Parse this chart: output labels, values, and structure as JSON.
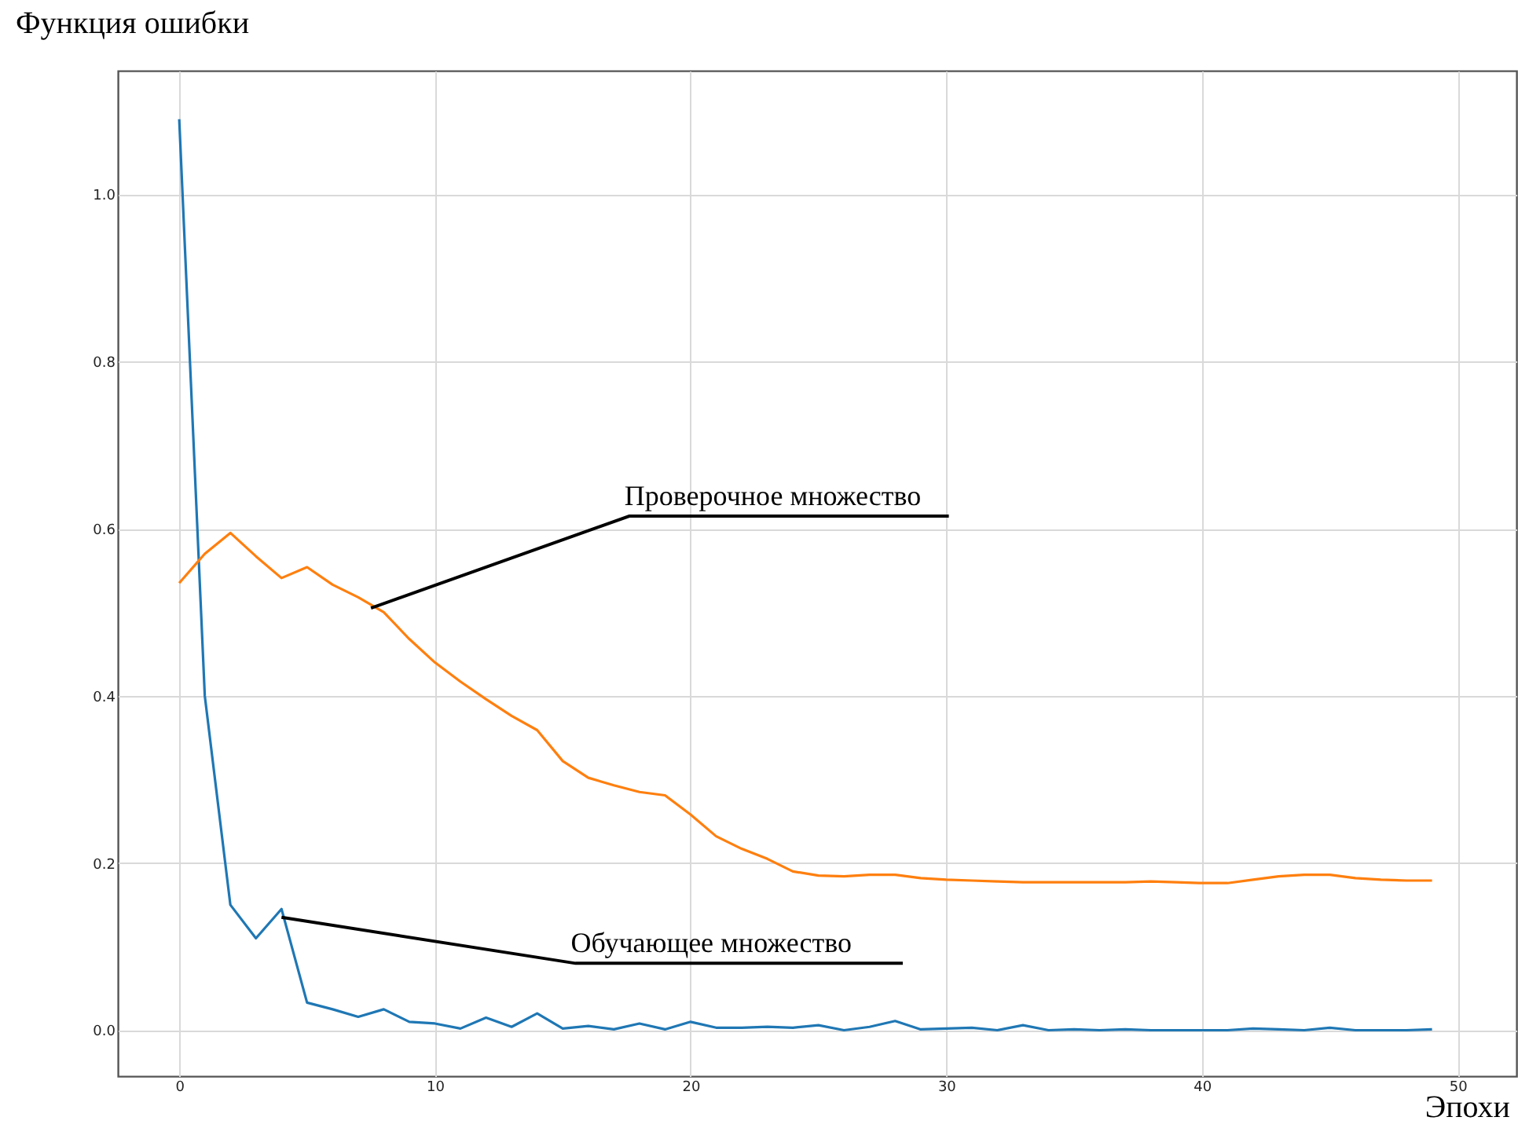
{
  "chart_data": {
    "type": "line",
    "xlabel": "Эпохи",
    "ylabel": "Функция ошибки",
    "x": [
      0,
      1,
      2,
      3,
      4,
      5,
      6,
      7,
      8,
      9,
      10,
      11,
      12,
      13,
      14,
      15,
      16,
      17,
      18,
      19,
      20,
      21,
      22,
      23,
      24,
      25,
      26,
      27,
      28,
      29,
      30,
      31,
      32,
      33,
      34,
      35,
      36,
      37,
      38,
      39,
      40,
      41,
      42,
      43,
      44,
      45,
      46,
      47,
      48,
      49
    ],
    "series": [
      {
        "color": "#1f77b4",
        "values": [
          1.09,
          0.4,
          0.15,
          0.11,
          0.145,
          0.033,
          0.025,
          0.016,
          0.025,
          0.01,
          0.008,
          0.002,
          0.015,
          0.004,
          0.02,
          0.002,
          0.005,
          0.001,
          0.008,
          0.001,
          0.01,
          0.003,
          0.003,
          0.004,
          0.003,
          0.006,
          0.0,
          0.004,
          0.011,
          0.001,
          0.002,
          0.003,
          0.0,
          0.006,
          0.0,
          0.001,
          0.0,
          0.001,
          0.0,
          0.0,
          0.0,
          0.0,
          0.002,
          0.001,
          0.0,
          0.003,
          0.0,
          0.0,
          0.0,
          0.001
        ]
      },
      {
        "color": "#ff7f0e",
        "values": [
          0.535,
          0.57,
          0.595,
          0.567,
          0.541,
          0.554,
          0.533,
          0.518,
          0.5,
          0.468,
          0.44,
          0.417,
          0.396,
          0.376,
          0.359,
          0.322,
          0.302,
          0.293,
          0.285,
          0.281,
          0.258,
          0.232,
          0.217,
          0.205,
          0.19,
          0.185,
          0.184,
          0.186,
          0.186,
          0.182,
          0.18,
          0.179,
          0.178,
          0.177,
          0.177,
          0.177,
          0.177,
          0.177,
          0.178,
          0.177,
          0.176,
          0.176,
          0.18,
          0.184,
          0.186,
          0.186,
          0.182,
          0.18,
          0.179,
          0.179
        ]
      }
    ],
    "annotations": [
      {
        "text": "Проверочное множество",
        "x": 7.5,
        "y": 0.505
      },
      {
        "text": "Обучающее множество",
        "x": 4,
        "y": 0.135
      }
    ],
    "xlim": [
      -2.4,
      52.3
    ],
    "ylim": [
      -0.055,
      1.148
    ],
    "xticks": [
      0,
      10,
      20,
      30,
      40,
      50
    ],
    "yticks": [
      {
        "value": 0,
        "label": "0.0"
      },
      {
        "value": 0.2,
        "label": "0.2"
      },
      {
        "value": 0.4,
        "label": "0.4"
      },
      {
        "value": 0.6,
        "label": "0.6"
      },
      {
        "value": 0.8,
        "label": "0.8"
      },
      {
        "value": 1.0,
        "label": "1.0"
      }
    ],
    "grid": true,
    "line_style": "solid",
    "marker": "none"
  }
}
